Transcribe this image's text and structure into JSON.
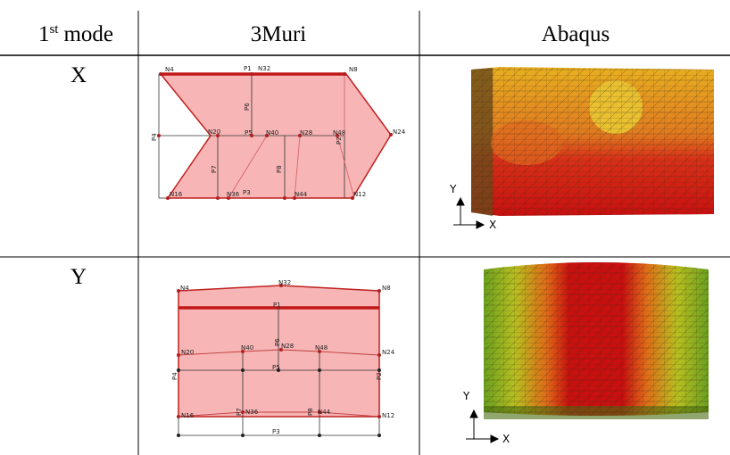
{
  "header": {
    "mode_number": "1",
    "mode_suffix": "st",
    "mode_word": "mode",
    "muri": "3Muri",
    "abaqus": "Abaqus"
  },
  "rows": [
    {
      "mode": "X",
      "muri": [
        "N4",
        "P1",
        "N32",
        "N8",
        "P6",
        "P4",
        "N20",
        "P5",
        "N40",
        "N28",
        "N48",
        "P2",
        "N24",
        "P7",
        "P8",
        "N16",
        "N36",
        "P3",
        "N44",
        "N12"
      ],
      "abaqus_axes": [
        "Y",
        "X"
      ]
    },
    {
      "mode": "Y",
      "muri": [
        "N4",
        "N32",
        "N8",
        "P1",
        "N20",
        "N40",
        "N28",
        "N48",
        "N24",
        "P6",
        "P5",
        "P4",
        "P2",
        "N16",
        "P7",
        "N36",
        "P8",
        "N44",
        "N12",
        "P3"
      ],
      "abaqus_axes": [
        "Y",
        "X"
      ]
    }
  ]
}
